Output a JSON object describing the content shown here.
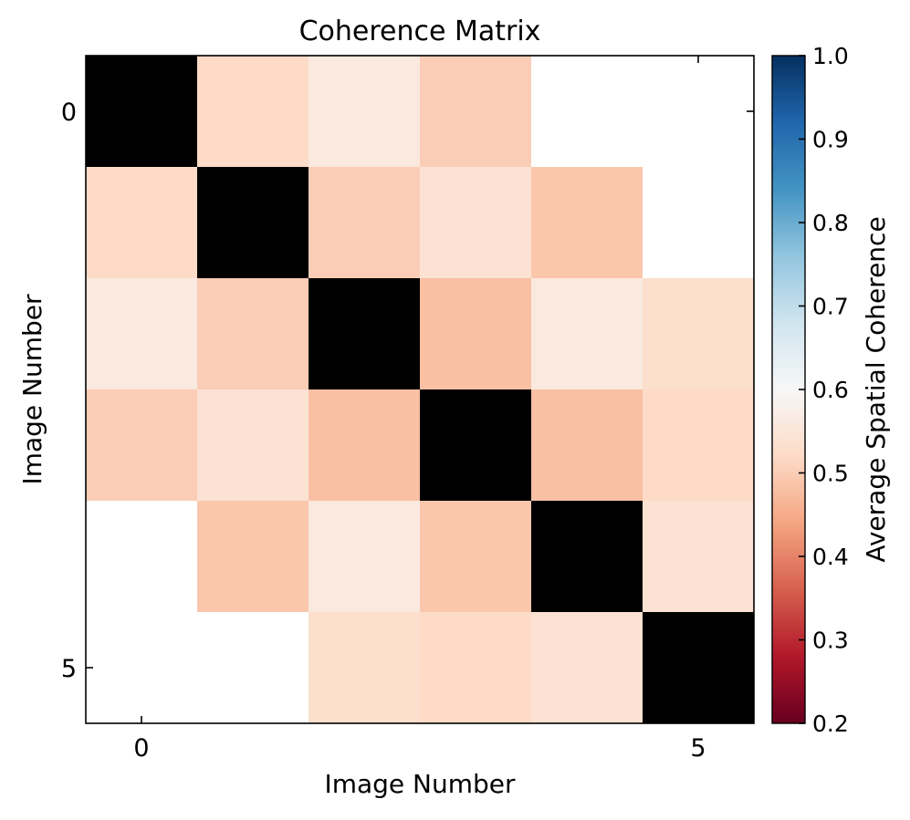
{
  "chart_data": {
    "type": "heatmap",
    "title": "Coherence Matrix",
    "xlabel": "Image Number",
    "ylabel": "Image Number",
    "colorbar_label": "Average Spatial Coherence",
    "x_ticks": [
      0,
      5
    ],
    "y_ticks": [
      0,
      5
    ],
    "x_tick_labels": [
      "0",
      "5"
    ],
    "y_tick_labels": [
      "0",
      "5"
    ],
    "rows": 6,
    "cols": 6,
    "values": [
      [
        1.0,
        0.52,
        0.56,
        0.5,
        null,
        null
      ],
      [
        0.52,
        1.0,
        0.5,
        0.54,
        0.49,
        null
      ],
      [
        0.56,
        0.5,
        1.0,
        0.48,
        0.56,
        0.53
      ],
      [
        0.5,
        0.54,
        0.48,
        1.0,
        0.48,
        0.52
      ],
      [
        null,
        0.49,
        0.56,
        0.49,
        1.0,
        0.54
      ],
      [
        null,
        null,
        0.53,
        0.52,
        0.54,
        1.0
      ]
    ],
    "diagonal_color": "#000000",
    "missing_color": "#ffffff",
    "colorbar": {
      "range": [
        0.2,
        1.0
      ],
      "ticks": [
        0.2,
        0.3,
        0.4,
        0.5,
        0.6,
        0.7,
        0.8,
        0.9,
        1.0
      ],
      "tick_labels": [
        "0.2",
        "0.3",
        "0.4",
        "0.5",
        "0.6",
        "0.7",
        "0.8",
        "0.9",
        "1.0"
      ],
      "colormap": "RdBu",
      "colormap_stops": [
        "#67001f",
        "#b2182b",
        "#d6604d",
        "#f4a582",
        "#fddbc7",
        "#f7f7f7",
        "#d1e5f0",
        "#92c5de",
        "#4393c3",
        "#2166ac",
        "#053061"
      ]
    }
  }
}
